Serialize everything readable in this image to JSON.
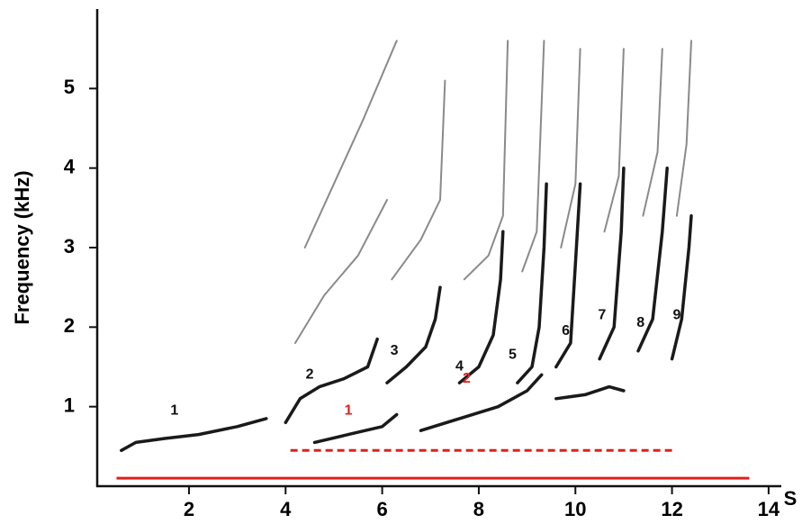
{
  "chart_data": {
    "type": "spectrogram",
    "ylabel": "Frequency (kHz)",
    "xlabel": "S",
    "xlim": [
      0.1,
      14.3
    ],
    "ylim": [
      0,
      6
    ],
    "xticks": [
      2,
      4,
      6,
      8,
      10,
      12,
      14
    ],
    "yticks": [
      1,
      2,
      3,
      4,
      5
    ],
    "trace_color": "#1a1a1a",
    "harmonic_color": "#8a8a8a",
    "range_color": "#e0201b",
    "traces": [
      {
        "x": [
          0.6,
          0.9,
          1.5,
          2.2,
          3.0,
          3.6
        ],
        "y": [
          0.45,
          0.55,
          0.6,
          0.65,
          0.75,
          0.85
        ]
      },
      {
        "x": [
          4.0,
          4.3,
          4.7,
          5.2,
          5.7,
          5.9
        ],
        "y": [
          0.8,
          1.1,
          1.25,
          1.35,
          1.5,
          1.85
        ]
      },
      {
        "x": [
          6.1,
          6.5,
          6.9,
          7.1,
          7.2
        ],
        "y": [
          1.3,
          1.5,
          1.75,
          2.1,
          2.5
        ]
      },
      {
        "x": [
          7.6,
          8.0,
          8.3,
          8.45,
          8.5
        ],
        "y": [
          1.3,
          1.5,
          1.9,
          2.6,
          3.2
        ]
      },
      {
        "x": [
          8.8,
          9.1,
          9.25,
          9.35,
          9.4
        ],
        "y": [
          1.3,
          1.5,
          2.0,
          3.0,
          3.8
        ]
      },
      {
        "x": [
          9.6,
          9.9,
          10.0,
          10.1
        ],
        "y": [
          1.5,
          1.8,
          2.8,
          3.8
        ]
      },
      {
        "x": [
          10.5,
          10.8,
          10.95,
          11.0
        ],
        "y": [
          1.6,
          2.0,
          3.2,
          4.0
        ]
      },
      {
        "x": [
          11.3,
          11.6,
          11.8,
          11.9
        ],
        "y": [
          1.7,
          2.1,
          3.2,
          4.0
        ]
      },
      {
        "x": [
          12.0,
          12.2,
          12.35,
          12.4
        ],
        "y": [
          1.6,
          2.1,
          3.0,
          3.4
        ]
      },
      {
        "x": [
          4.6,
          5.3,
          6.0,
          6.3
        ],
        "y": [
          0.55,
          0.65,
          0.75,
          0.9
        ]
      },
      {
        "x": [
          6.8,
          7.6,
          8.4,
          9.0,
          9.3
        ],
        "y": [
          0.7,
          0.85,
          1.0,
          1.2,
          1.4
        ]
      },
      {
        "x": [
          9.6,
          10.2,
          10.7,
          11.0
        ],
        "y": [
          1.1,
          1.15,
          1.25,
          1.2
        ]
      }
    ],
    "harmonics": [
      {
        "x": [
          4.2,
          4.8,
          5.5,
          6.1
        ],
        "y": [
          1.8,
          2.4,
          2.9,
          3.6
        ]
      },
      {
        "x": [
          4.4,
          5.0,
          5.6,
          6.3
        ],
        "y": [
          3.0,
          3.8,
          4.6,
          5.6
        ]
      },
      {
        "x": [
          6.2,
          6.8,
          7.2,
          7.3
        ],
        "y": [
          2.6,
          3.1,
          3.6,
          5.1
        ]
      },
      {
        "x": [
          7.7,
          8.2,
          8.5,
          8.6
        ],
        "y": [
          2.6,
          2.9,
          3.4,
          5.6
        ]
      },
      {
        "x": [
          8.9,
          9.2,
          9.35
        ],
        "y": [
          2.7,
          3.2,
          5.6
        ]
      },
      {
        "x": [
          9.7,
          10.0,
          10.1
        ],
        "y": [
          3.0,
          3.8,
          5.5
        ]
      },
      {
        "x": [
          10.6,
          10.9,
          11.0
        ],
        "y": [
          3.2,
          3.9,
          5.5
        ]
      },
      {
        "x": [
          11.4,
          11.7,
          11.8
        ],
        "y": [
          3.4,
          4.2,
          5.5
        ]
      },
      {
        "x": [
          12.1,
          12.3,
          12.4
        ],
        "y": [
          3.4,
          4.3,
          5.6
        ]
      }
    ],
    "annotations": [
      {
        "text": "1",
        "x": 1.7,
        "y": 0.95,
        "color": "#111111"
      },
      {
        "text": "2",
        "x": 4.5,
        "y": 1.4,
        "color": "#111111"
      },
      {
        "text": "3",
        "x": 6.25,
        "y": 1.7,
        "color": "#111111"
      },
      {
        "text": "4",
        "x": 7.6,
        "y": 1.5,
        "color": "#111111"
      },
      {
        "text": "5",
        "x": 8.7,
        "y": 1.65,
        "color": "#111111"
      },
      {
        "text": "6",
        "x": 9.8,
        "y": 1.95,
        "color": "#111111"
      },
      {
        "text": "7",
        "x": 10.55,
        "y": 2.15,
        "color": "#111111"
      },
      {
        "text": "8",
        "x": 11.35,
        "y": 2.05,
        "color": "#111111"
      },
      {
        "text": "9",
        "x": 12.1,
        "y": 2.15,
        "color": "#111111"
      },
      {
        "text": "1",
        "x": 5.3,
        "y": 0.95,
        "color": "#e0201b"
      },
      {
        "text": "2",
        "x": 7.75,
        "y": 1.35,
        "color": "#e0201b"
      }
    ],
    "ranges": [
      {
        "x": [
          0.5,
          13.6
        ],
        "y": 0.1,
        "dashed": false
      },
      {
        "x": [
          4.1,
          12.0
        ],
        "y": 0.45,
        "dashed": true
      }
    ]
  }
}
